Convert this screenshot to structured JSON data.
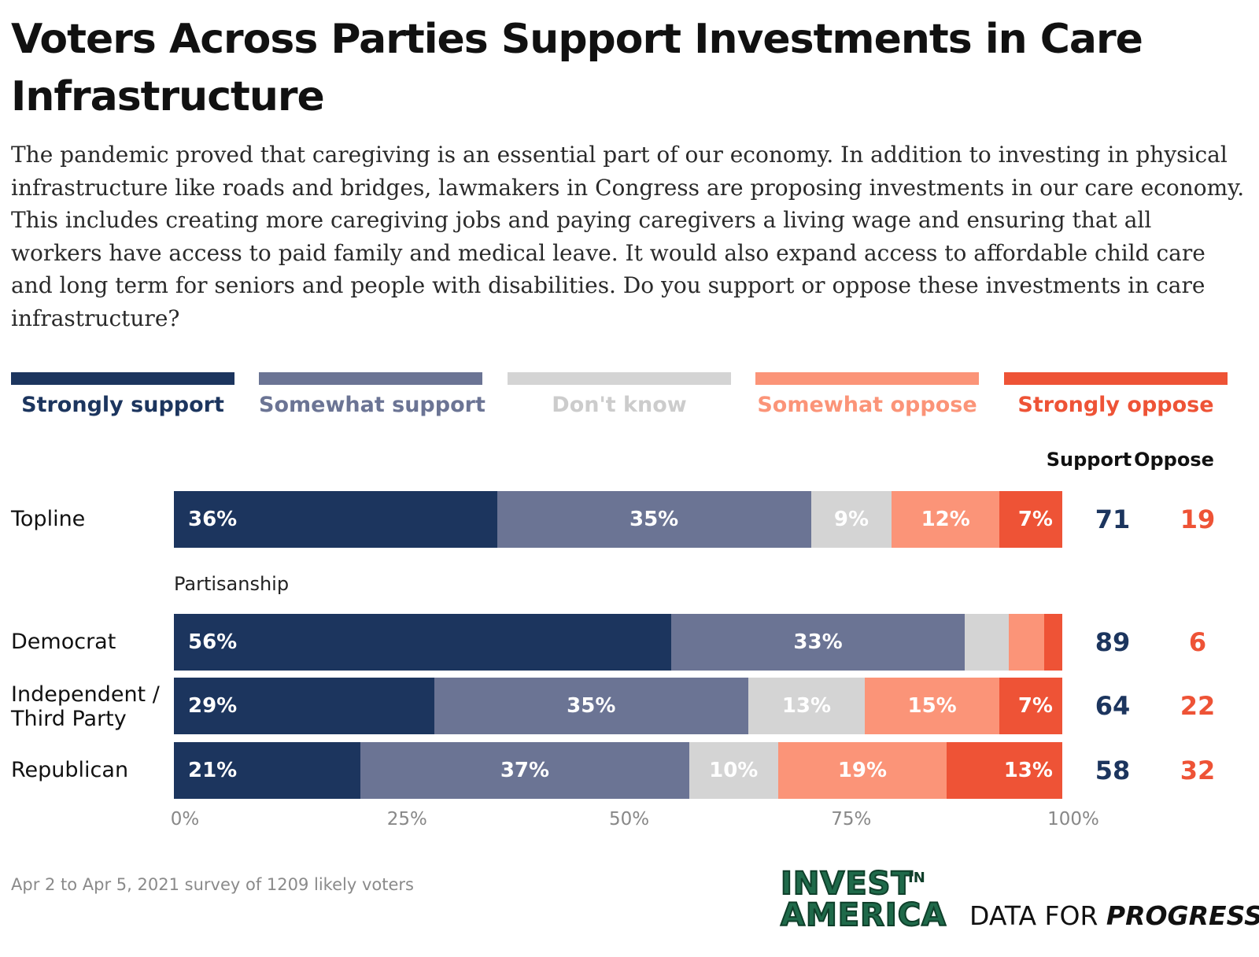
{
  "title": "Voters Across Parties Support Investments in Care Infrastructure",
  "subtitle": "The pandemic proved that caregiving is an essential part of our economy. In addition to investing in physical infrastructure like roads and bridges, lawmakers in Congress are proposing investments in our care economy. This includes creating more caregiving jobs and paying caregivers a living wage and ensuring that all workers have access to paid family and medical leave. It would also expand access to affordable child care and long term for seniors and people with disabilities. Do you support or oppose these investments in care infrastructure?",
  "columns": {
    "support": "Support",
    "oppose": "Oppose"
  },
  "group_label": "Partisanship",
  "footnote": "Apr 2 to Apr 5, 2021 survey of 1209 likely voters",
  "logos": {
    "invest_line1": "INVEST",
    "invest_in": "IN",
    "invest_line2": "AMERICA",
    "dfp_prefix": "DATA FOR ",
    "dfp_strong": "PROGRESS"
  },
  "colors": {
    "strongly_support": "#1c355e",
    "somewhat_support": "#6b7494",
    "dont_know": "#d4d4d4",
    "somewhat_oppose": "#fb9478",
    "strongly_oppose": "#ee5336",
    "support_text": "#1c355e",
    "oppose_text": "#ee5336",
    "dont_know_label": "#cccccc",
    "invest_green": "#1f6a4a"
  },
  "chart_data": {
    "type": "bar",
    "orientation": "horizontal",
    "stacked": true,
    "categories": [
      "Topline",
      "Democrat",
      "Independent / Third Party",
      "Republican"
    ],
    "series": [
      {
        "name": "Strongly support",
        "values": [
          36,
          56,
          29,
          21
        ]
      },
      {
        "name": "Somewhat support",
        "values": [
          35,
          33,
          35,
          37
        ]
      },
      {
        "name": "Don't know",
        "values": [
          9,
          5,
          13,
          10
        ]
      },
      {
        "name": "Somewhat oppose",
        "values": [
          12,
          4,
          15,
          19
        ]
      },
      {
        "name": "Strongly oppose",
        "values": [
          7,
          2,
          7,
          13
        ]
      }
    ],
    "data_labels": [
      [
        "36%",
        "35%",
        "9%",
        "12%",
        "7%"
      ],
      [
        "56%",
        "33%",
        "",
        "",
        ""
      ],
      [
        "29%",
        "35%",
        "13%",
        "15%",
        "7%"
      ],
      [
        "21%",
        "37%",
        "10%",
        "19%",
        "13%"
      ]
    ],
    "support_totals": [
      71,
      89,
      64,
      58
    ],
    "oppose_totals": [
      19,
      6,
      22,
      32
    ],
    "xlim": [
      0,
      100
    ],
    "x_ticks": [
      "0%",
      "25%",
      "50%",
      "75%",
      "100%"
    ],
    "legend_position": "top",
    "grid": false
  }
}
